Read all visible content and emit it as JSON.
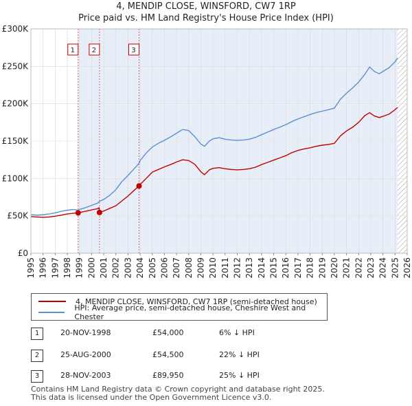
{
  "title": "4, MENDIP CLOSE, WINSFORD, CW7 1RP",
  "subtitle": "Price paid vs. HM Land Registry's House Price Index (HPI)",
  "colors": {
    "hpi": "#5b8fd0",
    "price": "#c00000",
    "shade": "#e8eef8",
    "vline": "#e06070"
  },
  "chart_data": {
    "type": "line",
    "xlim": [
      1995,
      2026
    ],
    "ylim": [
      0,
      300000
    ],
    "grid": true,
    "y_ticks": [
      {
        "v": 0,
        "label": "£0"
      },
      {
        "v": 50000,
        "label": "£50K"
      },
      {
        "v": 100000,
        "label": "£100K"
      },
      {
        "v": 150000,
        "label": "£150K"
      },
      {
        "v": 200000,
        "label": "£200K"
      },
      {
        "v": 250000,
        "label": "£250K"
      },
      {
        "v": 300000,
        "label": "£300K"
      }
    ],
    "x_ticks": [
      "1995",
      "1996",
      "1997",
      "1998",
      "1999",
      "2000",
      "2001",
      "2002",
      "2003",
      "2004",
      "2005",
      "2006",
      "2007",
      "2008",
      "2009",
      "2010",
      "2011",
      "2012",
      "2013",
      "2014",
      "2015",
      "2016",
      "2017",
      "2018",
      "2019",
      "2020",
      "2021",
      "2022",
      "2023",
      "2024",
      "2025",
      "2026"
    ],
    "series": [
      {
        "name": "4, MENDIP CLOSE, WINSFORD, CW7 1RP (semi-detached house)",
        "key": "price",
        "points": [
          [
            1995.0,
            49000
          ],
          [
            1995.5,
            48500
          ],
          [
            1996.0,
            48000
          ],
          [
            1996.5,
            48500
          ],
          [
            1997.0,
            49500
          ],
          [
            1997.5,
            51000
          ],
          [
            1998.0,
            52500
          ],
          [
            1998.5,
            53500
          ],
          [
            1998.89,
            54000
          ],
          [
            1999.0,
            54500
          ],
          [
            1999.5,
            56000
          ],
          [
            2000.0,
            58000
          ],
          [
            2000.5,
            59500
          ],
          [
            2000.62,
            61000
          ],
          [
            2000.65,
            54500
          ],
          [
            2001.0,
            56500
          ],
          [
            2001.5,
            60000
          ],
          [
            2002.0,
            63500
          ],
          [
            2002.5,
            70000
          ],
          [
            2003.0,
            76500
          ],
          [
            2003.5,
            84000
          ],
          [
            2003.9,
            89950
          ],
          [
            2004.0,
            92000
          ],
          [
            2004.5,
            100000
          ],
          [
            2005.0,
            108500
          ],
          [
            2005.5,
            112000
          ],
          [
            2006.0,
            115500
          ],
          [
            2006.5,
            118500
          ],
          [
            2007.0,
            122000
          ],
          [
            2007.5,
            125000
          ],
          [
            2008.0,
            124000
          ],
          [
            2008.5,
            119000
          ],
          [
            2009.0,
            109000
          ],
          [
            2009.3,
            105000
          ],
          [
            2009.7,
            111500
          ],
          [
            2010.0,
            113500
          ],
          [
            2010.5,
            114500
          ],
          [
            2011.0,
            113000
          ],
          [
            2011.5,
            112000
          ],
          [
            2012.0,
            111500
          ],
          [
            2012.5,
            112000
          ],
          [
            2013.0,
            113000
          ],
          [
            2013.5,
            115000
          ],
          [
            2014.0,
            118500
          ],
          [
            2014.5,
            121500
          ],
          [
            2015.0,
            124500
          ],
          [
            2015.5,
            127500
          ],
          [
            2016.0,
            130500
          ],
          [
            2016.5,
            134500
          ],
          [
            2017.0,
            137500
          ],
          [
            2017.5,
            139500
          ],
          [
            2018.0,
            141000
          ],
          [
            2018.5,
            143000
          ],
          [
            2019.0,
            144500
          ],
          [
            2019.5,
            145500
          ],
          [
            2020.0,
            147000
          ],
          [
            2020.5,
            157000
          ],
          [
            2021.0,
            163500
          ],
          [
            2021.5,
            168500
          ],
          [
            2022.0,
            175000
          ],
          [
            2022.5,
            184000
          ],
          [
            2022.9,
            188000
          ],
          [
            2023.3,
            183500
          ],
          [
            2023.7,
            181500
          ],
          [
            2024.0,
            183000
          ],
          [
            2024.5,
            186000
          ],
          [
            2025.0,
            192000
          ],
          [
            2025.2,
            195000
          ]
        ]
      },
      {
        "name": "HPI: Average price, semi-detached house, Cheshire West and Chester",
        "key": "hpi",
        "points": [
          [
            1995.0,
            51500
          ],
          [
            1995.5,
            51000
          ],
          [
            1996.0,
            51500
          ],
          [
            1996.5,
            52500
          ],
          [
            1997.0,
            54000
          ],
          [
            1997.5,
            56000
          ],
          [
            1998.0,
            57500
          ],
          [
            1998.5,
            58500
          ],
          [
            1998.89,
            57500
          ],
          [
            1999.0,
            58500
          ],
          [
            1999.5,
            61000
          ],
          [
            2000.0,
            64000
          ],
          [
            2000.5,
            67000
          ],
          [
            2000.65,
            69500
          ],
          [
            2001.0,
            72000
          ],
          [
            2001.5,
            77500
          ],
          [
            2002.0,
            85000
          ],
          [
            2002.5,
            96000
          ],
          [
            2003.0,
            104000
          ],
          [
            2003.5,
            113000
          ],
          [
            2003.9,
            120000
          ],
          [
            2004.0,
            124000
          ],
          [
            2004.5,
            134000
          ],
          [
            2005.0,
            142000
          ],
          [
            2005.5,
            147000
          ],
          [
            2006.0,
            151000
          ],
          [
            2006.5,
            155500
          ],
          [
            2007.0,
            160500
          ],
          [
            2007.5,
            165500
          ],
          [
            2008.0,
            164000
          ],
          [
            2008.5,
            156000
          ],
          [
            2009.0,
            146000
          ],
          [
            2009.3,
            143000
          ],
          [
            2009.7,
            150000
          ],
          [
            2010.0,
            153000
          ],
          [
            2010.5,
            154500
          ],
          [
            2011.0,
            152500
          ],
          [
            2011.5,
            151500
          ],
          [
            2012.0,
            151000
          ],
          [
            2012.5,
            151500
          ],
          [
            2013.0,
            152500
          ],
          [
            2013.5,
            155000
          ],
          [
            2014.0,
            158500
          ],
          [
            2014.5,
            162000
          ],
          [
            2015.0,
            165500
          ],
          [
            2015.5,
            168500
          ],
          [
            2016.0,
            172000
          ],
          [
            2016.5,
            176000
          ],
          [
            2017.0,
            179500
          ],
          [
            2017.5,
            182500
          ],
          [
            2018.0,
            185500
          ],
          [
            2018.5,
            188000
          ],
          [
            2019.0,
            190000
          ],
          [
            2019.5,
            192000
          ],
          [
            2020.0,
            194000
          ],
          [
            2020.5,
            206000
          ],
          [
            2021.0,
            214000
          ],
          [
            2021.5,
            221000
          ],
          [
            2022.0,
            229000
          ],
          [
            2022.5,
            239000
          ],
          [
            2022.9,
            249000
          ],
          [
            2023.3,
            243000
          ],
          [
            2023.7,
            240000
          ],
          [
            2024.0,
            243000
          ],
          [
            2024.5,
            248000
          ],
          [
            2025.0,
            256000
          ],
          [
            2025.2,
            261000
          ]
        ]
      }
    ],
    "transactions": [
      {
        "n": "1",
        "x": 1998.89,
        "date": "20-NOV-1998",
        "price": 54000,
        "price_label": "£54,000",
        "hpi": "6% ↓ HPI"
      },
      {
        "n": "2",
        "x": 2000.65,
        "date": "25-AUG-2000",
        "price": 54500,
        "price_label": "£54,500",
        "hpi": "22% ↓ HPI"
      },
      {
        "n": "3",
        "x": 2003.91,
        "date": "28-NOV-2003",
        "price": 89950,
        "price_label": "£89,950",
        "hpi": "25% ↓ HPI"
      }
    ],
    "hatch_from": 2025.2
  },
  "footer": {
    "line1": "Contains HM Land Registry data © Crown copyright and database right 2025.",
    "line2": "This data is licensed under the Open Government Licence v3.0."
  }
}
